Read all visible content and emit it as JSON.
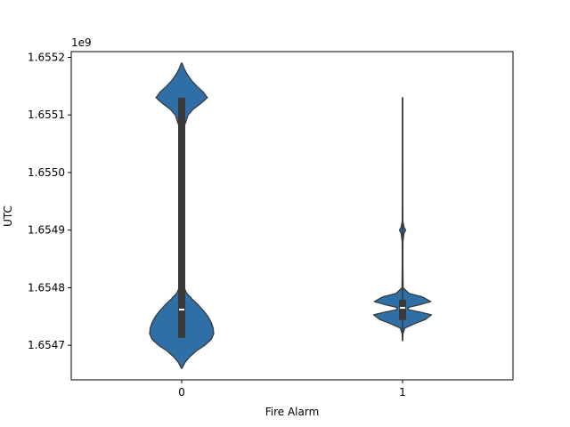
{
  "chart_data": {
    "type": "violin",
    "title": "",
    "xlabel": "Fire Alarm",
    "ylabel": "UTC",
    "offset_label": "1e9",
    "categories": [
      "0",
      "1"
    ],
    "ylim": [
      1.65464,
      1.65521
    ],
    "yticks": [
      1.6547,
      1.6548,
      1.6549,
      1.655,
      1.6551,
      1.6552
    ],
    "ytick_labels": [
      "1.6547",
      "1.6548",
      "1.6549",
      "1.6550",
      "1.6551",
      "1.6552"
    ],
    "grid": false,
    "fill_color": "#2f6fa8",
    "edge_color": "#3a3a3a",
    "violins": [
      {
        "category": "0",
        "whisker_low": 1.654713,
        "whisker_high": 1.65513,
        "q1": 1.654713,
        "q3": 1.65513,
        "median": 1.654762,
        "profile": [
          [
            1.65466,
            0.01
          ],
          [
            1.65467,
            0.1
          ],
          [
            1.65468,
            0.25
          ],
          [
            1.65469,
            0.45
          ],
          [
            1.6547,
            0.72
          ],
          [
            1.65471,
            0.92
          ],
          [
            1.65472,
            1.0
          ],
          [
            1.65473,
            0.98
          ],
          [
            1.65474,
            0.92
          ],
          [
            1.65475,
            0.82
          ],
          [
            1.65476,
            0.68
          ],
          [
            1.65477,
            0.52
          ],
          [
            1.65478,
            0.33
          ],
          [
            1.65479,
            0.16
          ],
          [
            1.6548,
            0.075
          ],
          [
            1.65482,
            0.05
          ],
          [
            1.65485,
            0.045
          ],
          [
            1.6549,
            0.04
          ],
          [
            1.65495,
            0.04
          ],
          [
            1.655,
            0.045
          ],
          [
            1.65505,
            0.05
          ],
          [
            1.65508,
            0.08
          ],
          [
            1.6551,
            0.2
          ],
          [
            1.65511,
            0.36
          ],
          [
            1.65512,
            0.6
          ],
          [
            1.65513,
            0.8
          ],
          [
            1.65514,
            0.67
          ],
          [
            1.65515,
            0.47
          ],
          [
            1.65516,
            0.3
          ],
          [
            1.65517,
            0.18
          ],
          [
            1.65518,
            0.08
          ],
          [
            1.65519,
            0.01
          ]
        ]
      },
      {
        "category": "1",
        "whisker_low": 1.65471,
        "whisker_high": 1.65513,
        "q1": 1.654744,
        "q3": 1.654779,
        "median": 1.654765,
        "profile": [
          [
            1.654708,
            0.005
          ],
          [
            1.65472,
            0.012
          ],
          [
            1.65473,
            0.07
          ],
          [
            1.654738,
            0.4
          ],
          [
            1.654745,
            0.72
          ],
          [
            1.654753,
            0.9
          ],
          [
            1.654758,
            0.52
          ],
          [
            1.654762,
            0.18
          ],
          [
            1.654766,
            0.18
          ],
          [
            1.65477,
            0.5
          ],
          [
            1.654776,
            0.88
          ],
          [
            1.654784,
            0.62
          ],
          [
            1.65479,
            0.2
          ],
          [
            1.6548,
            0.018
          ],
          [
            1.65484,
            0.01
          ],
          [
            1.65488,
            0.012
          ],
          [
            1.654895,
            0.045
          ],
          [
            1.6549,
            0.1
          ],
          [
            1.654905,
            0.045
          ],
          [
            1.654915,
            0.01
          ],
          [
            1.65495,
            0.006
          ],
          [
            1.655,
            0.006
          ],
          [
            1.65505,
            0.005
          ],
          [
            1.6551,
            0.005
          ],
          [
            1.65513,
            0.004
          ]
        ]
      }
    ]
  }
}
